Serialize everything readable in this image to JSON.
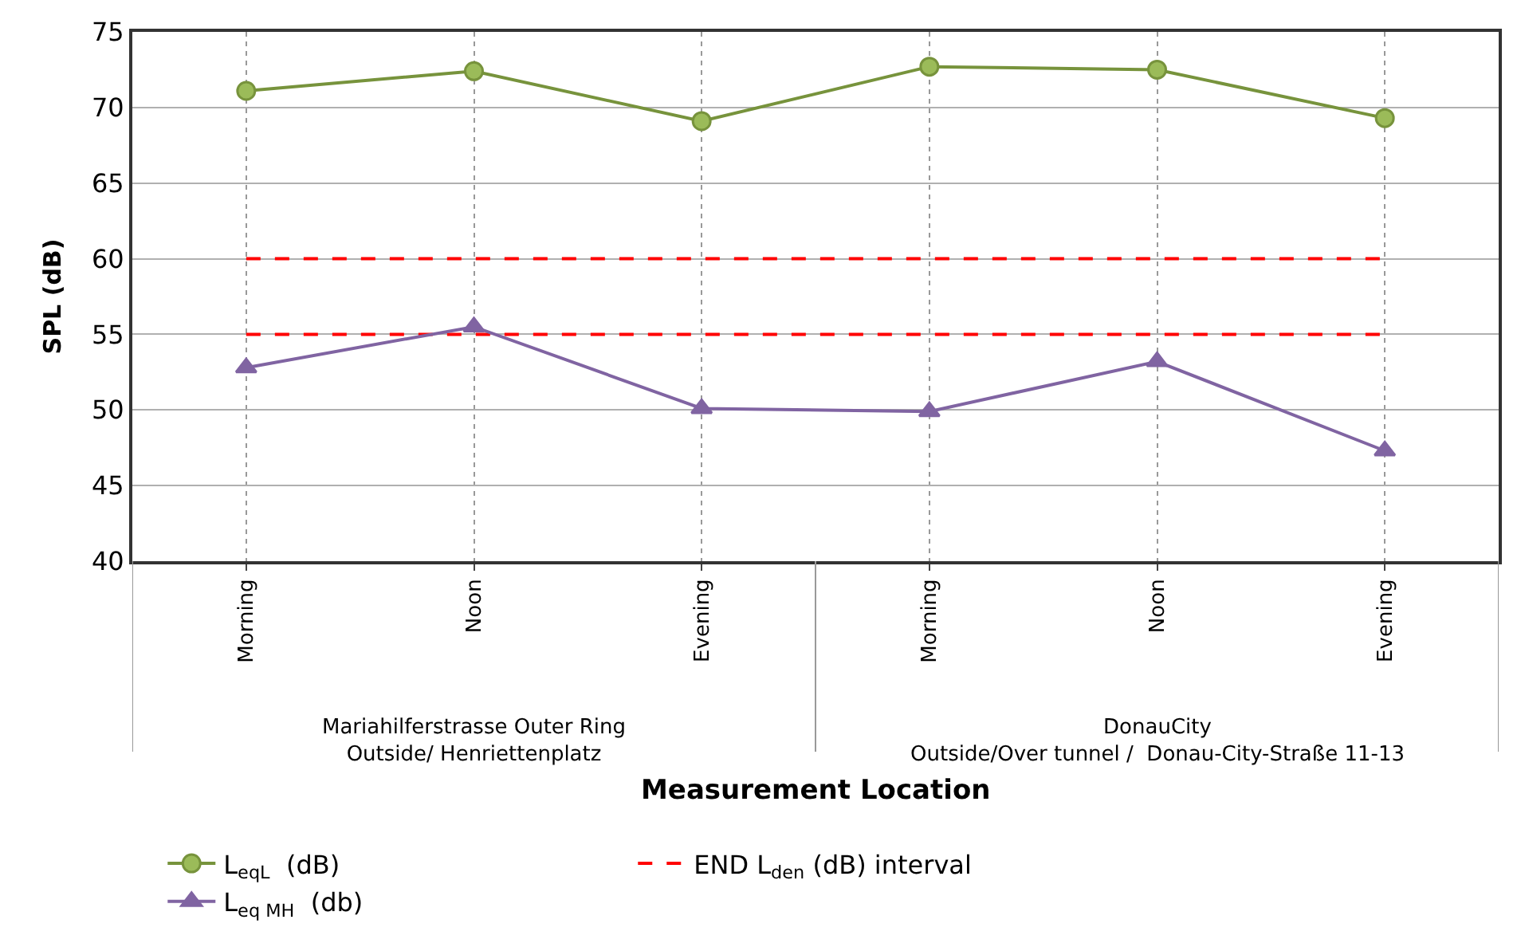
{
  "chart_data": {
    "type": "line",
    "ylabel": "SPL (dB)",
    "xlabel": "Measurement Location",
    "categories": [
      "Morning",
      "Noon",
      "Evening",
      "Morning",
      "Noon",
      "Evening"
    ],
    "series": [
      {
        "name": "L$_{eqL}$  (dB)",
        "color": "#77933c",
        "marker": "circle",
        "line_style": "solid",
        "values": [
          71.1,
          72.4,
          69.1,
          72.7,
          72.5,
          69.3
        ]
      },
      {
        "name": "END L$_{den}$ (dB) interval",
        "color": "#ff0000",
        "marker": "none",
        "line_style": "dashed",
        "values": [
          60,
          60,
          60,
          60,
          60,
          60
        ]
      },
      {
        "color": "#ff0000",
        "marker": "none",
        "line_style": "dashed",
        "values": [
          55,
          55,
          55,
          55,
          55,
          55
        ]
      },
      {
        "name": "L$_{eq MH}$  (db)",
        "color": "#8064a2",
        "marker": "triangle",
        "line_style": "solid",
        "values": [
          52.8,
          55.5,
          50.1,
          49.9,
          53.2,
          47.3
        ]
      }
    ],
    "annotations": [
      "Mariahilferstrasse Outer Ring\nOutside/ Henriettenplatz",
      "DonauCity\nOutside/Over tunnel /  Donau-City-Straße 11-13"
    ],
    "ylim": [
      40,
      75
    ],
    "yticks": [
      40,
      45,
      50,
      55,
      60,
      65,
      70,
      75
    ],
    "grid": true,
    "legend": "bottom"
  }
}
